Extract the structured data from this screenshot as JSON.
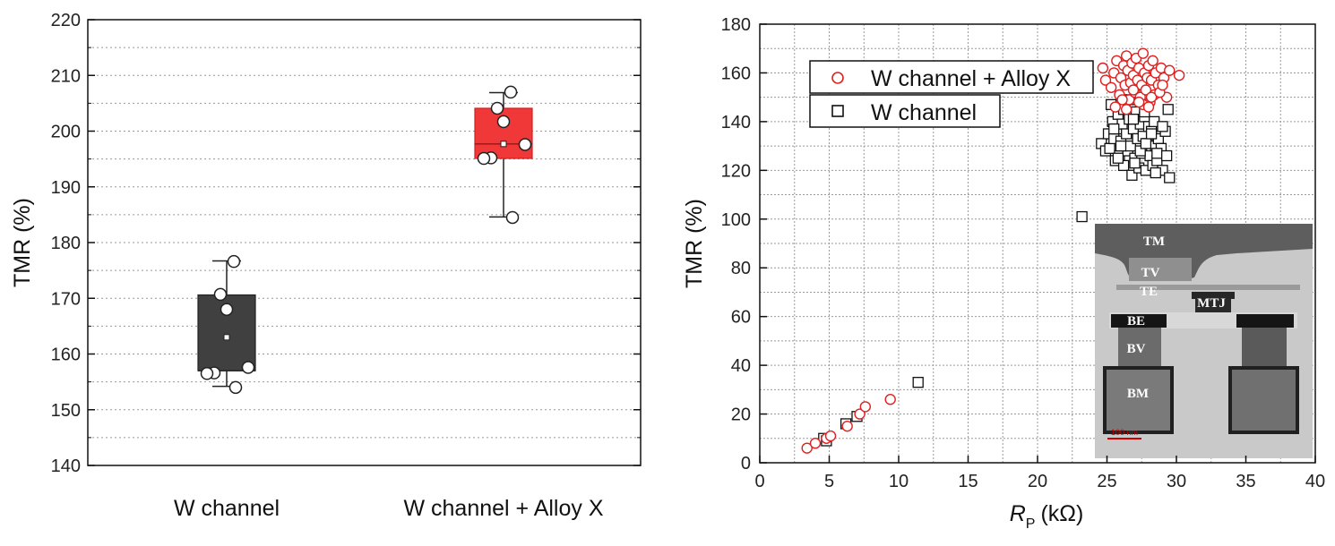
{
  "chart_data": [
    {
      "type": "box",
      "title": "",
      "xlabel": "",
      "ylabel": "TMR (%)",
      "ylim": [
        140,
        220
      ],
      "yticks": [
        "140",
        "150",
        "160",
        "170",
        "180",
        "190",
        "200",
        "210",
        "220"
      ],
      "grid": "horizontal-dotted",
      "categories": [
        "W channel",
        "W channel + Alloy X"
      ],
      "boxes": [
        {
          "category": "W channel",
          "color": "#404040",
          "q1": 157.0,
          "median": 157.0,
          "q3": 170.6,
          "mean": 163.0,
          "whisker_low": 154.2,
          "whisker_high": 176.7,
          "points": [
            176.6,
            170.7,
            168.0,
            157.6,
            156.6,
            156.5,
            154.0
          ]
        },
        {
          "category": "W channel + Alloy X",
          "color": "#f03838",
          "q1": 195.1,
          "median": 197.7,
          "q3": 204.1,
          "mean": 197.7,
          "whisker_low": 184.6,
          "whisker_high": 206.9,
          "points": [
            207.0,
            204.1,
            201.7,
            197.6,
            195.2,
            195.1,
            184.5
          ]
        }
      ]
    },
    {
      "type": "scatter",
      "title": "",
      "xlabel": {
        "main": "R",
        "sub": "P",
        "unit": "(kΩ)"
      },
      "ylabel": "TMR (%)",
      "xlim": [
        0,
        40
      ],
      "ylim": [
        0,
        180
      ],
      "xticks": [
        "0",
        "5",
        "10",
        "15",
        "20",
        "25",
        "30",
        "35",
        "40"
      ],
      "yticks": [
        "0",
        "20",
        "40",
        "60",
        "80",
        "100",
        "120",
        "140",
        "160",
        "180"
      ],
      "grid": "both-dotted",
      "legend_position": "top-left",
      "inset": {
        "description_labels": [
          "TM",
          "TV",
          "TE",
          "MTJ",
          "BE",
          "BV",
          "BM",
          "100 nm"
        ],
        "position": "bottom-right"
      },
      "series": [
        {
          "name": "W channel + Alloy X",
          "marker": "circle",
          "color": "#e02020",
          "x": [
            3.4,
            4.0,
            4.8,
            5.1,
            6.3,
            7.2,
            7.6,
            9.4,
            24.7,
            24.9,
            25.3,
            25.5,
            25.7,
            25.9,
            26.0,
            26.2,
            26.3,
            26.4,
            26.5,
            26.6,
            26.7,
            26.8,
            26.9,
            27.0,
            27.1,
            27.2,
            27.3,
            27.4,
            27.5,
            27.6,
            27.7,
            27.8,
            27.9,
            28.0,
            28.1,
            28.2,
            28.3,
            28.4,
            28.5,
            28.7,
            28.9,
            29.1,
            29.3,
            29.5,
            30.2,
            25.6,
            26.1,
            26.9,
            27.6,
            28.2,
            28.8,
            26.4,
            27.3,
            28.0,
            29.0
          ],
          "y": [
            6,
            8,
            10,
            11,
            15,
            20,
            23,
            26,
            162,
            157,
            154,
            160,
            165,
            151,
            158,
            163,
            155,
            167,
            161,
            149,
            156,
            164,
            159,
            152,
            166,
            157,
            162,
            150,
            155,
            168,
            160,
            153,
            158,
            163,
            148,
            157,
            165,
            151,
            160,
            155,
            162,
            158,
            150,
            161,
            159,
            146,
            149,
            153,
            147,
            150,
            152,
            145,
            148,
            146,
            155
          ]
        },
        {
          "name": "W channel",
          "marker": "square",
          "color": "#111111",
          "x": [
            4.6,
            4.8,
            6.2,
            7.0,
            11.4,
            23.2,
            24.6,
            24.9,
            25.1,
            25.2,
            25.4,
            25.5,
            25.6,
            25.7,
            25.8,
            25.9,
            26.0,
            26.1,
            26.2,
            26.3,
            26.4,
            26.5,
            26.6,
            26.7,
            26.8,
            26.9,
            27.0,
            27.1,
            27.2,
            27.3,
            27.4,
            27.5,
            27.6,
            27.7,
            27.8,
            27.9,
            28.0,
            28.1,
            28.2,
            28.3,
            28.4,
            28.5,
            28.6,
            28.7,
            28.9,
            29.0,
            29.2,
            29.4,
            29.5,
            25.3,
            25.8,
            26.2,
            26.6,
            27.0,
            27.4,
            27.8,
            28.2,
            28.6,
            29.0,
            26.0,
            26.9,
            27.7,
            28.5,
            25.5,
            29.3
          ],
          "y": [
            10,
            9,
            16,
            19,
            33,
            101,
            131,
            128,
            135,
            129,
            140,
            133,
            124,
            137,
            143,
            126,
            132,
            139,
            122,
            146,
            135,
            128,
            141,
            130,
            118,
            137,
            125,
            144,
            133,
            121,
            139,
            127,
            134,
            142,
            120,
            131,
            138,
            126,
            136,
            122,
            140,
            130,
            124,
            133,
            129,
            120,
            136,
            145,
            117,
            147,
            125,
            145,
            149,
            123,
            128,
            131,
            135,
            127,
            138,
            130,
            141,
            144,
            119,
            137,
            126
          ]
        }
      ]
    }
  ]
}
